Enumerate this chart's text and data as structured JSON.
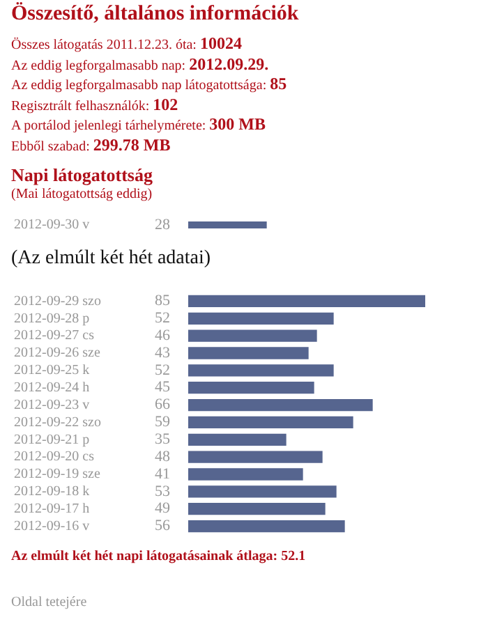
{
  "chart_data": [
    {
      "type": "other",
      "title": "Összesítő, általános információk",
      "annotations": [
        "Összes látogatás 2011.12.23. óta: 10024",
        "Az eddig legforgalmasabb nap: 2012.09.29.",
        "Az eddig legforgalmasabb nap látogatottsága: 85",
        "Regisztrált felhasználók: 102",
        "A portálod jelenlegi tárhelymérete: 300 MB",
        "Ebből szabad: 299.78 MB"
      ]
    },
    {
      "type": "bar",
      "orientation": "horizontal",
      "title": "Napi látogatottság",
      "subtitle": "(Mai látogatottság eddig)",
      "categories": [
        "2012-09-30 v"
      ],
      "values": [
        28
      ],
      "color": "#56658f",
      "data_labels": true
    },
    {
      "type": "bar",
      "orientation": "horizontal",
      "subtitle": "(Az elmúlt két hét adatai)",
      "categories": [
        "2012-09-29 szo",
        "2012-09-28 p",
        "2012-09-27 cs",
        "2012-09-26 sze",
        "2012-09-25 k",
        "2012-09-24 h",
        "2012-09-23 v",
        "2012-09-22 szo",
        "2012-09-21 p",
        "2012-09-20 cs",
        "2012-09-19 sze",
        "2012-09-18 k",
        "2012-09-17 h",
        "2012-09-16 v"
      ],
      "values": [
        85,
        52,
        46,
        43,
        52,
        45,
        66,
        59,
        35,
        48,
        41,
        53,
        49,
        56
      ],
      "color": "#56658f",
      "data_labels": true,
      "annotations": [
        "Az elmúlt két hét napi látogatásainak átlaga: 52.1",
        "Oldal tetejére"
      ]
    }
  ]
}
